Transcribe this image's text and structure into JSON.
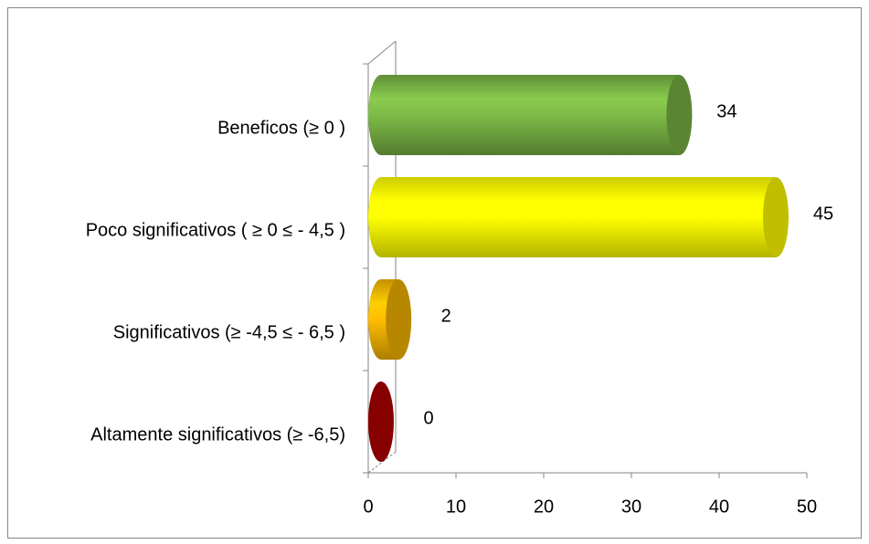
{
  "chart_data": {
    "type": "bar",
    "orientation": "horizontal",
    "categories": [
      "Beneficos  (≥ 0 )",
      "Poco significativos  ( ≥ 0  ≤ - 4,5 )",
      "Significativos (≥ -4,5  ≤ - 6,5 )",
      "Altamente significativos (≥  -6,5)"
    ],
    "values": [
      34,
      45,
      2,
      0
    ],
    "colors": [
      "#78b144",
      "#ffff00",
      "#f5b400",
      "#b40000"
    ],
    "xlim": [
      0,
      50
    ],
    "xticks": [
      0,
      10,
      20,
      30,
      40,
      50
    ]
  }
}
